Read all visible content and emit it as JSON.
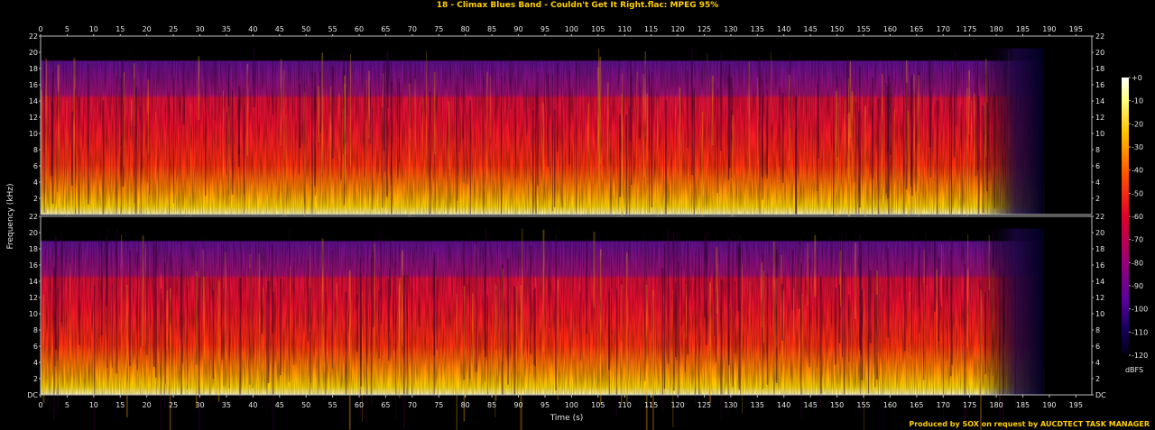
{
  "title": "18 - Climax Blues Band - Couldn't Get It Right.flac: MPEG 95%",
  "footer": "Produced by SOX on request by AUCDTECT TASK MANAGER",
  "chart_data": {
    "type": "heatmap",
    "title": "18 - Climax Blues Band - Couldn't Get It Right.flac: MPEG 95%",
    "xlabel": "Time (s)",
    "ylabel": "Frequency (kHz)",
    "xlim": [
      0,
      198
    ],
    "ylim": [
      0,
      22
    ],
    "x_ticks": [
      "0",
      "5",
      "10",
      "15",
      "20",
      "25",
      "30",
      "35",
      "40",
      "45",
      "50",
      "55",
      "60",
      "65",
      "70",
      "75",
      "80",
      "85",
      "90",
      "95",
      "100",
      "105",
      "110",
      "115",
      "120",
      "125",
      "130",
      "135",
      "140",
      "145",
      "150",
      "155",
      "160",
      "165",
      "170",
      "175",
      "180",
      "185",
      "190",
      "195"
    ],
    "y_ticks_top": [
      "2",
      "4",
      "6",
      "8",
      "10",
      "12",
      "14",
      "16",
      "18",
      "20",
      "22"
    ],
    "y_ticks_bottom": [
      "DC",
      "2",
      "4",
      "6",
      "8",
      "10",
      "12",
      "14",
      "16",
      "18",
      "20",
      "22"
    ],
    "channels": 2,
    "audio_end_s": 189,
    "spectral_ceiling_khz": 20.5,
    "colorbar": {
      "label": "dBFS",
      "ticks": [
        "+0",
        "-10",
        "-20",
        "-30",
        "-40",
        "-50",
        "-60",
        "-70",
        "-80",
        "-90",
        "-100",
        "-110",
        "-120"
      ],
      "range_db": [
        -120,
        0
      ]
    }
  }
}
